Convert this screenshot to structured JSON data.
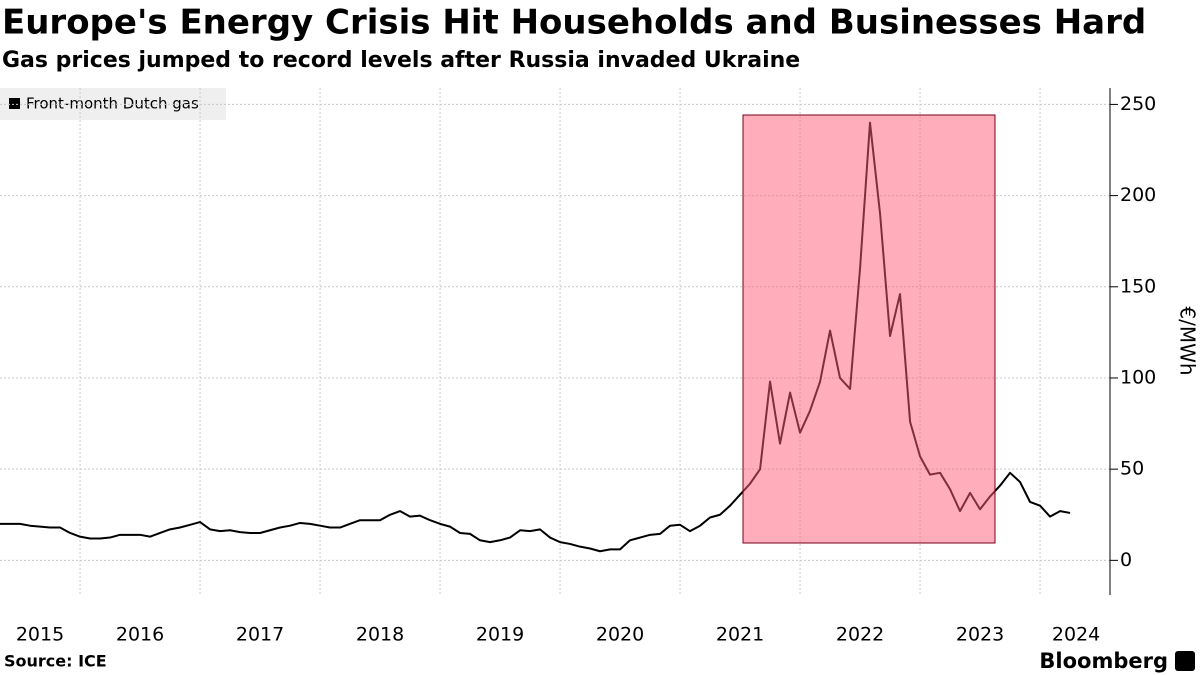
{
  "chart_data": {
    "type": "line",
    "title": "Europe's Energy Crisis Hit Households and Businesses Hard",
    "subtitle": "Gas prices jumped to record levels after Russia invaded Ukraine",
    "y_axis_label": "€/MWh",
    "source": "Source: ICE",
    "brand": "Bloomberg",
    "x": [
      2015.333,
      2015.417,
      2015.5,
      2015.583,
      2015.667,
      2015.75,
      2015.833,
      2015.917,
      2016,
      2016.083,
      2016.167,
      2016.25,
      2016.333,
      2016.417,
      2016.5,
      2016.583,
      2016.667,
      2016.75,
      2016.833,
      2016.917,
      2017,
      2017.083,
      2017.167,
      2017.25,
      2017.333,
      2017.417,
      2017.5,
      2017.583,
      2017.667,
      2017.75,
      2017.833,
      2017.917,
      2018,
      2018.083,
      2018.167,
      2018.25,
      2018.333,
      2018.417,
      2018.5,
      2018.583,
      2018.667,
      2018.75,
      2018.833,
      2018.917,
      2019,
      2019.083,
      2019.167,
      2019.25,
      2019.333,
      2019.417,
      2019.5,
      2019.583,
      2019.667,
      2019.75,
      2019.833,
      2019.917,
      2020,
      2020.083,
      2020.167,
      2020.25,
      2020.333,
      2020.417,
      2020.5,
      2020.583,
      2020.667,
      2020.75,
      2020.833,
      2020.917,
      2021,
      2021.083,
      2021.167,
      2021.25,
      2021.333,
      2021.417,
      2021.5,
      2021.583,
      2021.667,
      2021.75,
      2021.833,
      2021.917,
      2022,
      2022.083,
      2022.167,
      2022.25,
      2022.333,
      2022.417,
      2022.5,
      2022.583,
      2022.667,
      2022.75,
      2022.833,
      2022.917,
      2023,
      2023.083,
      2023.167,
      2023.25,
      2023.333,
      2023.417,
      2023.5,
      2023.583,
      2023.667,
      2023.75,
      2023.833,
      2023.917,
      2024,
      2024.083,
      2024.167,
      2024.25
    ],
    "series": [
      {
        "name": "Front-month Dutch gas",
        "color": "#000000",
        "values": [
          20,
          20,
          20,
          19,
          18.5,
          18,
          18,
          15,
          13,
          12,
          12,
          12.5,
          14,
          14,
          14,
          13,
          15,
          17,
          18,
          19.5,
          21,
          17,
          16,
          16.5,
          15.5,
          15,
          15,
          16.5,
          18,
          19,
          20.5,
          20,
          19,
          18,
          18,
          20,
          22,
          22,
          22,
          25,
          27,
          24,
          24.5,
          22,
          20,
          18.5,
          15,
          14.5,
          11,
          10,
          11,
          12.5,
          16.5,
          16,
          17,
          12.5,
          10,
          9,
          7.5,
          6.5,
          5,
          6,
          6,
          11,
          12.5,
          14,
          14.5,
          19,
          19.5,
          16,
          19,
          23.5,
          25,
          30,
          36,
          42,
          50,
          98,
          64,
          92,
          70,
          82,
          98,
          126,
          100,
          94,
          160,
          240,
          190,
          123,
          146,
          76,
          57,
          47,
          48,
          39,
          27,
          37,
          28,
          35,
          41,
          48,
          43,
          32,
          30,
          24,
          27,
          26
        ]
      }
    ],
    "xlim": [
      2015.333,
      2024.583
    ],
    "xticks": [
      {
        "value": 2015.5,
        "label": "2015"
      },
      {
        "value": 2016.5,
        "label": "2016"
      },
      {
        "value": 2017.5,
        "label": "2017"
      },
      {
        "value": 2018.5,
        "label": "2018"
      },
      {
        "value": 2019.5,
        "label": "2019"
      },
      {
        "value": 2020.5,
        "label": "2020"
      },
      {
        "value": 2021.5,
        "label": "2021"
      },
      {
        "value": 2022.5,
        "label": "2022"
      },
      {
        "value": 2023.5,
        "label": "2023"
      },
      {
        "value": 2024.3,
        "label": "2024"
      }
    ],
    "xgrid": [
      2016,
      2017,
      2018,
      2019,
      2020,
      2021,
      2022,
      2023,
      2024
    ],
    "ylim": [
      -19,
      259
    ],
    "yticks": [
      0,
      50,
      100,
      150,
      200,
      250
    ],
    "grid": true
  }
}
